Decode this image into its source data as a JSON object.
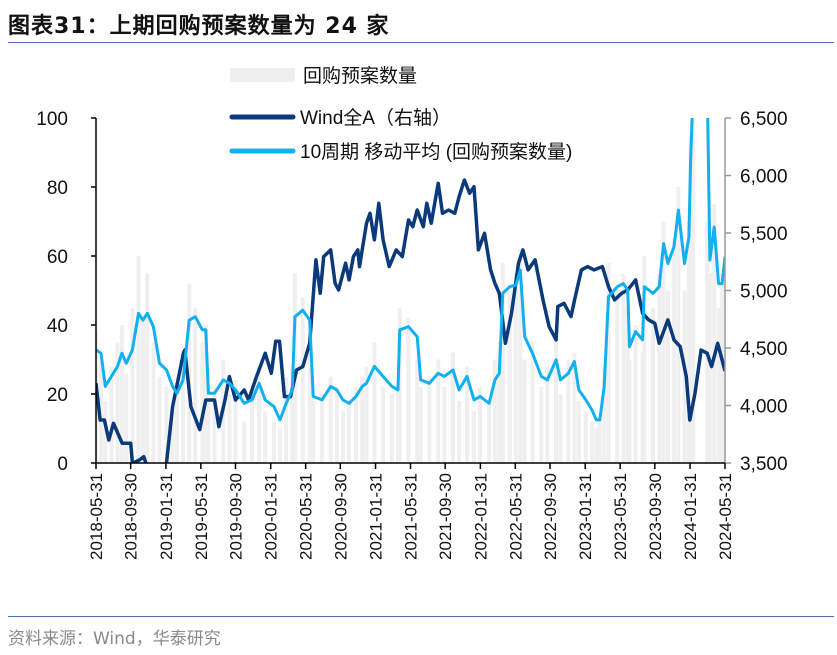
{
  "title": "图表31：上期回购预案数量为 24 家",
  "footer": "资料来源：Wind，华泰研究",
  "chart_data": {
    "type": "bar+line",
    "legend": [
      {
        "label": "回购预案数量",
        "type": "bar",
        "color": "#efefef"
      },
      {
        "label": "Wind全A（右轴）",
        "type": "line",
        "color": "#0b3a7a"
      },
      {
        "label": "10周期 移动平均 (回购预案数量)",
        "type": "line",
        "color": "#12b0ee"
      }
    ],
    "legend_position": "top-center",
    "left_axis": {
      "range": [
        0,
        100
      ],
      "ticks": [
        "0",
        "20",
        "40",
        "60",
        "80",
        "100"
      ]
    },
    "right_axis": {
      "range": [
        3500,
        6500
      ],
      "ticks": [
        "3,500",
        "4,000",
        "4,500",
        "5,000",
        "5,500",
        "6,000",
        "6,500"
      ]
    },
    "x_axis": {
      "range": [
        "2018-05-31",
        "2024-05-31"
      ],
      "ticks": [
        "2018-05-31",
        "2018-09-30",
        "2019-01-31",
        "2019-05-31",
        "2019-09-30",
        "2020-01-31",
        "2020-05-31",
        "2020-09-30",
        "2021-01-31",
        "2021-05-31",
        "2021-09-30",
        "2022-01-31",
        "2022-05-31",
        "2022-09-30",
        "2023-01-31",
        "2023-05-31",
        "2023-09-30",
        "2024-01-31",
        "2024-05-31"
      ]
    },
    "grid": false,
    "repurchase": [
      [
        "2018-05-31",
        38,
        32.8
      ],
      [
        "2018-06-18",
        30,
        31.8
      ],
      [
        "2018-07-03",
        18,
        22.2
      ],
      [
        "2018-07-24",
        28,
        25.1
      ],
      [
        "2018-08-15",
        35,
        28
      ],
      [
        "2018-08-30",
        40,
        31.8
      ],
      [
        "2018-09-15",
        26,
        28.9
      ],
      [
        "2018-10-06",
        45,
        32.8
      ],
      [
        "2018-10-27",
        60,
        43.4
      ],
      [
        "2018-11-12",
        42,
        41.4
      ],
      [
        "2018-11-27",
        55,
        43.4
      ],
      [
        "2018-12-18",
        35,
        39.5
      ],
      [
        "2019-01-09",
        25,
        28.9
      ],
      [
        "2019-02-03",
        22,
        27
      ],
      [
        "2019-02-24",
        15,
        22.2
      ],
      [
        "2019-03-09",
        20,
        20.2
      ],
      [
        "2019-03-30",
        30,
        24.1
      ],
      [
        "2019-04-21",
        52,
        41.4
      ],
      [
        "2019-05-12",
        45,
        42.4
      ],
      [
        "2019-06-06",
        35,
        38.6
      ],
      [
        "2019-06-18",
        40,
        38.6
      ],
      [
        "2019-06-27",
        18,
        20.2
      ],
      [
        "2019-07-18",
        22,
        20.2
      ],
      [
        "2019-08-18",
        30,
        24.1
      ],
      [
        "2019-09-09",
        20,
        23.1
      ],
      [
        "2019-09-30",
        24,
        21.2
      ],
      [
        "2019-10-30",
        12,
        17.3
      ],
      [
        "2019-11-27",
        20,
        18.3
      ],
      [
        "2019-12-21",
        28,
        23.1
      ],
      [
        "2020-01-12",
        15,
        18.3
      ],
      [
        "2020-02-12",
        12,
        16.4
      ],
      [
        "2020-03-03",
        10,
        12.5
      ],
      [
        "2020-03-24",
        25,
        17.3
      ],
      [
        "2020-04-15",
        28,
        21.2
      ],
      [
        "2020-04-24",
        55,
        42.4
      ],
      [
        "2020-05-21",
        48,
        44.3
      ],
      [
        "2020-06-15",
        35,
        41.4
      ],
      [
        "2020-06-27",
        18,
        19.3
      ],
      [
        "2020-07-27",
        20,
        18.3
      ],
      [
        "2020-08-27",
        25,
        22.2
      ],
      [
        "2020-09-18",
        22,
        21.2
      ],
      [
        "2020-10-09",
        15,
        18.3
      ],
      [
        "2020-10-30",
        18,
        17.3
      ],
      [
        "2020-11-24",
        22,
        19.3
      ],
      [
        "2020-12-15",
        25,
        22.2
      ],
      [
        "2020-12-30",
        28,
        23.1
      ],
      [
        "2021-01-27",
        35,
        28
      ],
      [
        "2021-02-27",
        22,
        25.1
      ],
      [
        "2021-03-27",
        20,
        22.2
      ],
      [
        "2021-04-18",
        24,
        21.2
      ],
      [
        "2021-04-24",
        45,
        38.6
      ],
      [
        "2021-05-24",
        42,
        39.5
      ],
      [
        "2021-06-24",
        30,
        36.6
      ],
      [
        "2021-07-06",
        22,
        24.1
      ],
      [
        "2021-08-06",
        25,
        23.1
      ],
      [
        "2021-09-06",
        30,
        26
      ],
      [
        "2021-09-27",
        22,
        25.1
      ],
      [
        "2021-10-27",
        32,
        27
      ],
      [
        "2021-11-18",
        18,
        21.2
      ],
      [
        "2021-12-15",
        28,
        25.1
      ],
      [
        "2022-01-09",
        15,
        18.3
      ],
      [
        "2022-01-30",
        22,
        19.3
      ],
      [
        "2022-03-01",
        18,
        17.3
      ],
      [
        "2022-03-21",
        30,
        24.1
      ],
      [
        "2022-04-06",
        35,
        26
      ],
      [
        "2022-04-18",
        58,
        49.2
      ],
      [
        "2022-05-12",
        50,
        51.1
      ],
      [
        "2022-06-03",
        55,
        51.6
      ],
      [
        "2022-06-18",
        62,
        55.9
      ],
      [
        "2022-07-03",
        30,
        36.6
      ],
      [
        "2022-07-30",
        35,
        31.8
      ],
      [
        "2022-08-30",
        22,
        25.1
      ],
      [
        "2022-09-21",
        28,
        24.1
      ],
      [
        "2022-10-21",
        35,
        29.9
      ],
      [
        "2022-11-06",
        20,
        24.1
      ],
      [
        "2022-12-03",
        30,
        26
      ],
      [
        "2022-12-24",
        32,
        29.4
      ],
      [
        "2023-01-09",
        18,
        21.2
      ],
      [
        "2023-02-03",
        15,
        18.3
      ],
      [
        "2023-02-24",
        12,
        15.4
      ],
      [
        "2023-03-09",
        10,
        12.5
      ],
      [
        "2023-03-21",
        14,
        12.5
      ],
      [
        "2023-04-06",
        28,
        22.2
      ],
      [
        "2023-04-21",
        58,
        48.2
      ],
      [
        "2023-05-21",
        50,
        51.1
      ],
      [
        "2023-06-12",
        55,
        52
      ],
      [
        "2023-06-27",
        45,
        50.1
      ],
      [
        "2023-07-03",
        30,
        33.7
      ],
      [
        "2023-07-24",
        40,
        38.1
      ],
      [
        "2023-08-18",
        32,
        35.7
      ],
      [
        "2023-08-24",
        60,
        51.1
      ],
      [
        "2023-09-24",
        45,
        49.2
      ],
      [
        "2023-10-15",
        55,
        51.1
      ],
      [
        "2023-10-30",
        70,
        63.6
      ],
      [
        "2023-11-15",
        50,
        57.8
      ],
      [
        "2023-12-06",
        65,
        62.7
      ],
      [
        "2023-12-21",
        80,
        73.3
      ],
      [
        "2024-01-12",
        50,
        57.8
      ],
      [
        "2024-01-27",
        70,
        65.5
      ],
      [
        "2024-02-03",
        95,
        87.7
      ],
      [
        "2024-02-12",
        100,
        110
      ],
      [
        "2024-03-30",
        70,
        110
      ],
      [
        "2024-04-09",
        55,
        58.8
      ],
      [
        "2024-04-24",
        75,
        68.4
      ],
      [
        "2024-05-09",
        45,
        52
      ],
      [
        "2024-05-21",
        55,
        52
      ],
      [
        "2024-05-31",
        24,
        59.8
      ]
    ],
    "wind_all_a": [
      [
        "2018-05-31",
        4193
      ],
      [
        "2018-06-15",
        3874
      ],
      [
        "2018-06-30",
        3874
      ],
      [
        "2018-07-15",
        3700
      ],
      [
        "2018-07-31",
        3845
      ],
      [
        "2018-08-31",
        3671
      ],
      [
        "2018-09-30",
        3671
      ],
      [
        "2018-10-06",
        3497
      ],
      [
        "2018-10-30",
        3526
      ],
      [
        "2018-11-15",
        3555
      ],
      [
        "2018-11-30",
        3440
      ],
      [
        "2018-12-31",
        3250
      ],
      [
        "2019-01-15",
        3300
      ],
      [
        "2019-02-03",
        3500
      ],
      [
        "2019-02-24",
        3990
      ],
      [
        "2019-03-15",
        4251
      ],
      [
        "2019-03-31",
        4454
      ],
      [
        "2019-04-06",
        4483
      ],
      [
        "2019-04-27",
        3990
      ],
      [
        "2019-05-27",
        3790
      ],
      [
        "2019-06-18",
        4048
      ],
      [
        "2019-07-18",
        4048
      ],
      [
        "2019-08-03",
        3816
      ],
      [
        "2019-08-24",
        4048
      ],
      [
        "2019-09-09",
        4251
      ],
      [
        "2019-09-30",
        4048
      ],
      [
        "2019-10-30",
        4135
      ],
      [
        "2019-11-15",
        4048
      ],
      [
        "2019-12-12",
        4251
      ],
      [
        "2020-01-12",
        4454
      ],
      [
        "2020-02-03",
        4280
      ],
      [
        "2020-02-18",
        4558
      ],
      [
        "2020-03-01",
        4558
      ],
      [
        "2020-03-18",
        4077
      ],
      [
        "2020-04-09",
        4077
      ],
      [
        "2020-04-30",
        4309
      ],
      [
        "2020-05-21",
        4338
      ],
      [
        "2020-06-15",
        4541
      ],
      [
        "2020-07-06",
        5266
      ],
      [
        "2020-07-21",
        4976
      ],
      [
        "2020-08-03",
        5295
      ],
      [
        "2020-08-27",
        5353
      ],
      [
        "2020-09-12",
        5063
      ],
      [
        "2020-09-24",
        5005
      ],
      [
        "2020-10-18",
        5237
      ],
      [
        "2020-10-30",
        5092
      ],
      [
        "2020-11-15",
        5295
      ],
      [
        "2020-11-30",
        5353
      ],
      [
        "2020-12-06",
        5208
      ],
      [
        "2020-12-30",
        5584
      ],
      [
        "2021-01-12",
        5671
      ],
      [
        "2021-01-27",
        5440
      ],
      [
        "2021-02-12",
        5758
      ],
      [
        "2021-02-27",
        5440
      ],
      [
        "2021-03-18",
        5208
      ],
      [
        "2021-04-12",
        5353
      ],
      [
        "2021-05-03",
        5295
      ],
      [
        "2021-05-24",
        5613
      ],
      [
        "2021-06-09",
        5555
      ],
      [
        "2021-06-24",
        5700
      ],
      [
        "2021-07-15",
        5555
      ],
      [
        "2021-07-27",
        5758
      ],
      [
        "2021-08-12",
        5584
      ],
      [
        "2021-09-06",
        5932
      ],
      [
        "2021-09-21",
        5671
      ],
      [
        "2021-10-12",
        5700
      ],
      [
        "2021-11-03",
        5671
      ],
      [
        "2021-11-18",
        5816
      ],
      [
        "2021-12-06",
        5961
      ],
      [
        "2021-12-24",
        5845
      ],
      [
        "2022-01-09",
        5903
      ],
      [
        "2022-01-24",
        5353
      ],
      [
        "2022-02-15",
        5497
      ],
      [
        "2022-03-06",
        5179
      ],
      [
        "2022-03-21",
        5063
      ],
      [
        "2022-04-06",
        4976
      ],
      [
        "2022-04-27",
        4541
      ],
      [
        "2022-05-18",
        4802
      ],
      [
        "2022-06-12",
        5237
      ],
      [
        "2022-06-27",
        5353
      ],
      [
        "2022-07-15",
        5179
      ],
      [
        "2022-08-09",
        5266
      ],
      [
        "2022-09-06",
        4918
      ],
      [
        "2022-09-27",
        4686
      ],
      [
        "2022-10-21",
        4570
      ],
      [
        "2022-10-27",
        4860
      ],
      [
        "2022-11-18",
        4889
      ],
      [
        "2022-12-12",
        4773
      ],
      [
        "2022-12-27",
        4947
      ],
      [
        "2023-01-18",
        5179
      ],
      [
        "2023-02-09",
        5208
      ],
      [
        "2023-03-01",
        5179
      ],
      [
        "2023-03-30",
        5208
      ],
      [
        "2023-04-21",
        5034
      ],
      [
        "2023-05-12",
        4918
      ],
      [
        "2023-06-06",
        4976
      ],
      [
        "2023-06-27",
        5005
      ],
      [
        "2023-07-24",
        5092
      ],
      [
        "2023-08-18",
        4802
      ],
      [
        "2023-09-09",
        4744
      ],
      [
        "2023-09-30",
        4715
      ],
      [
        "2023-10-15",
        4541
      ],
      [
        "2023-11-15",
        4744
      ],
      [
        "2023-12-06",
        4570
      ],
      [
        "2023-12-27",
        4512
      ],
      [
        "2024-01-18",
        4251
      ],
      [
        "2024-01-30",
        3874
      ],
      [
        "2024-02-18",
        4106
      ],
      [
        "2024-03-09",
        4483
      ],
      [
        "2024-03-30",
        4454
      ],
      [
        "2024-04-15",
        4338
      ],
      [
        "2024-05-06",
        4541
      ],
      [
        "2024-05-21",
        4396
      ],
      [
        "2024-05-31",
        4300
      ]
    ]
  }
}
